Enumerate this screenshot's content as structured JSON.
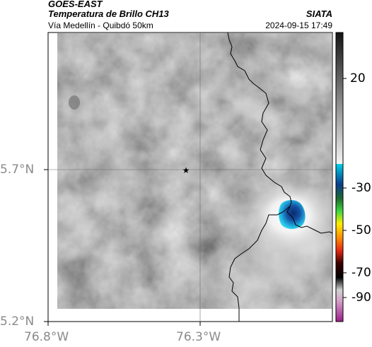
{
  "header": {
    "satellite": "GOES-EAST",
    "product": "Temperatura de Brillo CH13",
    "region": "Vía Medellín - Quibdó 50km",
    "agency": "SIATA",
    "timestamp": "2024-09-15 17:49"
  },
  "map": {
    "lat_labels": [
      "5.7°N",
      "5.2°N"
    ],
    "lon_labels": [
      "76.8°W",
      "76.3°W"
    ],
    "marker_icon": "star-icon",
    "gridlines": true
  },
  "colorbar": {
    "labels": [
      "20",
      "-30",
      "-50",
      "-70",
      "-90"
    ],
    "colors": {
      "gray_dark": "#1e1e1e",
      "gray_light": "#f0f0f0",
      "cyan": "#00c8e6",
      "blue": "#0a3c8c",
      "green": "#28c828",
      "yellow": "#ffee00",
      "red": "#e62814",
      "black": "#000000",
      "pink": "#d4a0c8",
      "magenta": "#a0288c"
    }
  }
}
